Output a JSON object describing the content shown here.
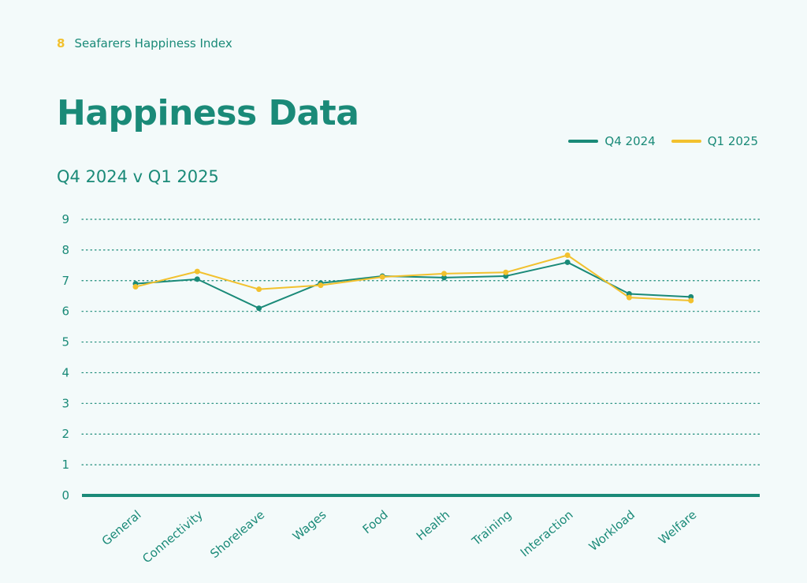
{
  "header": {
    "page_number": "8",
    "report_name": "Seafarers Happiness Index"
  },
  "title": "Happiness Data",
  "colors": {
    "q4": "#1a8a78",
    "q1": "#f2c12e"
  },
  "chart_data": {
    "type": "line",
    "title": "",
    "subtitle": "Q4 2024 v Q1 2025",
    "xlabel": "",
    "ylabel": "",
    "ylim": [
      0,
      9
    ],
    "yticks": [
      0,
      1,
      2,
      3,
      4,
      5,
      6,
      7,
      8,
      9
    ],
    "grid": true,
    "legend_position": "top-right",
    "categories": [
      "General",
      "Connectivity",
      "Shoreleave",
      "Wages",
      "Food",
      "Health",
      "Training",
      "Interaction",
      "Workload",
      "Welfare"
    ],
    "series": [
      {
        "name": "Q4 2024",
        "color": "#1a8a78",
        "values": [
          6.9,
          7.05,
          6.1,
          6.92,
          7.15,
          7.1,
          7.15,
          7.6,
          6.57,
          6.47
        ]
      },
      {
        "name": "Q1 2025",
        "color": "#f2c12e",
        "values": [
          6.8,
          7.3,
          6.72,
          6.85,
          7.12,
          7.23,
          7.27,
          7.83,
          6.45,
          6.35
        ]
      }
    ]
  }
}
